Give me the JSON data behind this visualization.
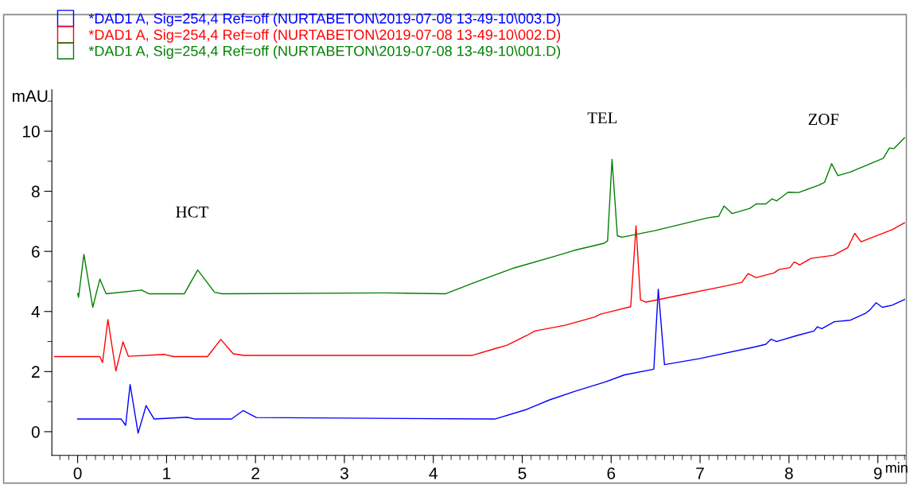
{
  "chart_data": {
    "type": "line",
    "xlabel": "min",
    "ylabel": "mAU",
    "xlim": [
      -0.29,
      9.31
    ],
    "xticks": [
      0,
      1,
      2,
      3,
      4,
      5,
      6,
      7,
      8,
      9
    ],
    "ylim": [
      -0.79,
      11.38
    ],
    "yticks": [
      0,
      2,
      4,
      6,
      8,
      10
    ],
    "grid": false,
    "legend": "top left",
    "marker": "none",
    "line_style": "solid",
    "annotations": [
      "HCT",
      "TEL",
      "ZOF"
    ],
    "series": [
      {
        "name": "*DAD1 A, Sig=254,4 Ref=off (NURTABETON\\2019-07-08 13-49-10\\003.D)",
        "color": "#0000ff",
        "x": [
          0.0,
          0.49,
          0.54,
          0.59,
          0.68,
          0.77,
          0.86,
          1.23,
          1.32,
          1.73,
          1.86,
          2.01,
          4.69,
          5.05,
          5.3,
          5.6,
          5.92,
          6.15,
          6.48,
          6.53,
          6.6,
          6.99,
          7.63,
          7.74,
          7.8,
          7.86,
          8.09,
          8.28,
          8.32,
          8.37,
          8.51,
          8.69,
          8.86,
          8.91,
          8.98,
          9.05,
          9.16,
          9.3
        ],
        "values": [
          0.42,
          0.42,
          0.21,
          1.57,
          -0.05,
          0.87,
          0.42,
          0.48,
          0.42,
          0.42,
          0.7,
          0.47,
          0.42,
          0.74,
          1.05,
          1.35,
          1.64,
          1.89,
          2.08,
          4.74,
          2.23,
          2.43,
          2.83,
          2.91,
          3.08,
          3.0,
          3.2,
          3.35,
          3.49,
          3.43,
          3.66,
          3.71,
          3.94,
          4.05,
          4.29,
          4.14,
          4.21,
          4.4
        ]
      },
      {
        "name": "*DAD1 A, Sig=254,4 Ref=off (NURTABETON\\2019-07-08 13-49-10\\002.D)",
        "color": "#ff0000",
        "x": [
          -0.26,
          0.25,
          0.28,
          0.34,
          0.43,
          0.51,
          0.57,
          0.98,
          1.08,
          1.46,
          1.61,
          1.75,
          1.87,
          4.44,
          4.68,
          4.83,
          5.05,
          5.14,
          5.48,
          5.81,
          5.88,
          6.22,
          6.28,
          6.33,
          6.39,
          6.72,
          7.29,
          7.47,
          7.54,
          7.63,
          7.83,
          7.89,
          8.01,
          8.06,
          8.12,
          8.25,
          8.5,
          8.66,
          8.74,
          8.81,
          9.16,
          9.3
        ],
        "values": [
          2.5,
          2.5,
          2.3,
          3.73,
          2.02,
          2.99,
          2.51,
          2.57,
          2.5,
          2.5,
          3.07,
          2.59,
          2.54,
          2.54,
          2.75,
          2.88,
          3.2,
          3.35,
          3.54,
          3.81,
          3.91,
          4.16,
          6.85,
          4.39,
          4.31,
          4.51,
          4.85,
          4.97,
          5.26,
          5.13,
          5.28,
          5.4,
          5.46,
          5.65,
          5.55,
          5.77,
          5.87,
          6.12,
          6.6,
          6.32,
          6.72,
          6.95
        ]
      },
      {
        "name": "*DAD1 A, Sig=254,4 Ref=off (NURTABETON\\2019-07-08 13-49-10\\001.D)",
        "color": "#008000",
        "x": [
          0.0,
          0.01,
          0.07,
          0.17,
          0.25,
          0.32,
          0.72,
          0.8,
          1.2,
          1.35,
          1.54,
          1.63,
          3.45,
          4.14,
          4.48,
          4.91,
          5.38,
          5.58,
          5.92,
          5.96,
          6.01,
          6.07,
          6.12,
          6.49,
          7.09,
          7.21,
          7.27,
          7.36,
          7.56,
          7.63,
          7.74,
          7.81,
          7.86,
          7.99,
          8.11,
          8.33,
          8.4,
          8.48,
          8.55,
          8.69,
          9.06,
          9.13,
          9.18,
          9.3
        ],
        "values": [
          4.6,
          4.47,
          5.9,
          4.14,
          5.08,
          4.59,
          4.71,
          4.59,
          4.59,
          5.38,
          4.64,
          4.59,
          4.62,
          4.59,
          4.98,
          5.45,
          5.85,
          6.03,
          6.27,
          6.35,
          9.06,
          6.52,
          6.47,
          6.69,
          7.12,
          7.17,
          7.51,
          7.26,
          7.43,
          7.58,
          7.58,
          7.75,
          7.68,
          7.97,
          7.96,
          8.2,
          8.3,
          8.92,
          8.52,
          8.64,
          9.1,
          9.44,
          9.42,
          9.78
        ]
      }
    ]
  }
}
